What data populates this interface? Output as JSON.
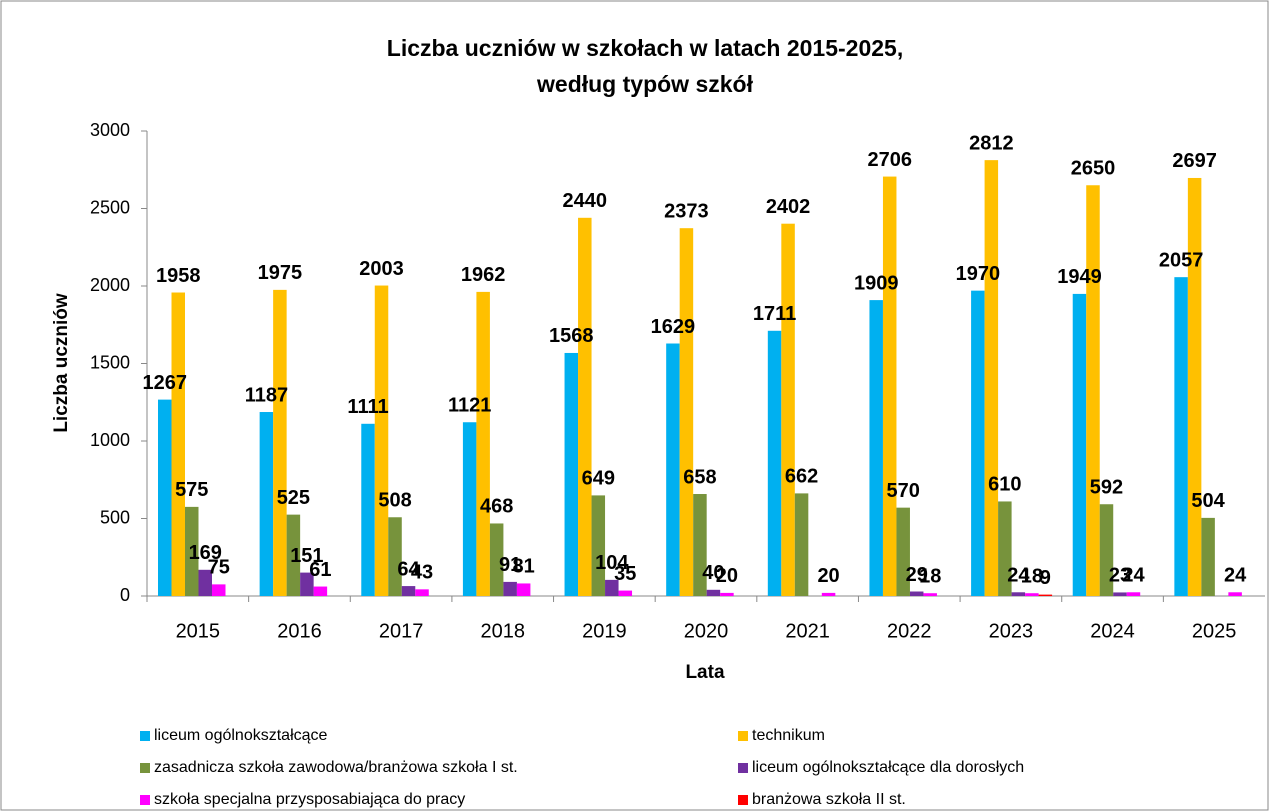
{
  "chart_data": {
    "type": "bar",
    "title": [
      "Liczba uczniów w szkołach w latach 2015-2025,",
      "według typów szkół"
    ],
    "x_label": "Lata",
    "y_label": "Liczba uczniów",
    "categories": [
      "2015",
      "2016",
      "2017",
      "2018",
      "2019",
      "2020",
      "2021",
      "2022",
      "2023",
      "2024",
      "2025"
    ],
    "series": [
      {
        "name": "liceum ogólnokształcące",
        "color": "#00b0f0",
        "values": [
          1267,
          1187,
          1111,
          1121,
          1568,
          1629,
          1711,
          1909,
          1970,
          1949,
          2057
        ]
      },
      {
        "name": "technikum",
        "color": "#ffc000",
        "values": [
          1958,
          1975,
          2003,
          1962,
          2440,
          2373,
          2402,
          2706,
          2812,
          2650,
          2697
        ]
      },
      {
        "name": "zasadnicza szkoła zawodowa/branżowa szkoła I st.",
        "color": "#77933c",
        "values": [
          575,
          525,
          508,
          468,
          649,
          658,
          662,
          570,
          610,
          592,
          504
        ]
      },
      {
        "name": "liceum ogólnokształcące dla dorosłych",
        "color": "#7030a0",
        "values": [
          169,
          151,
          64,
          91,
          104,
          40,
          null,
          29,
          24,
          23,
          null
        ]
      },
      {
        "name": "szkoła specjalna przysposabiająca do pracy",
        "color": "#ff00ff",
        "values": [
          75,
          61,
          43,
          81,
          35,
          20,
          20,
          18,
          18,
          24,
          24
        ]
      },
      {
        "name": "branżowa szkoła II st.",
        "color": "#ff0000",
        "values": [
          null,
          null,
          null,
          null,
          null,
          null,
          null,
          null,
          9,
          null,
          null
        ]
      }
    ],
    "ylim": [
      0,
      3000
    ],
    "yticks": [
      0,
      500,
      1000,
      1500,
      2000,
      2500,
      3000
    ],
    "grid": false,
    "legend": "bottom"
  }
}
